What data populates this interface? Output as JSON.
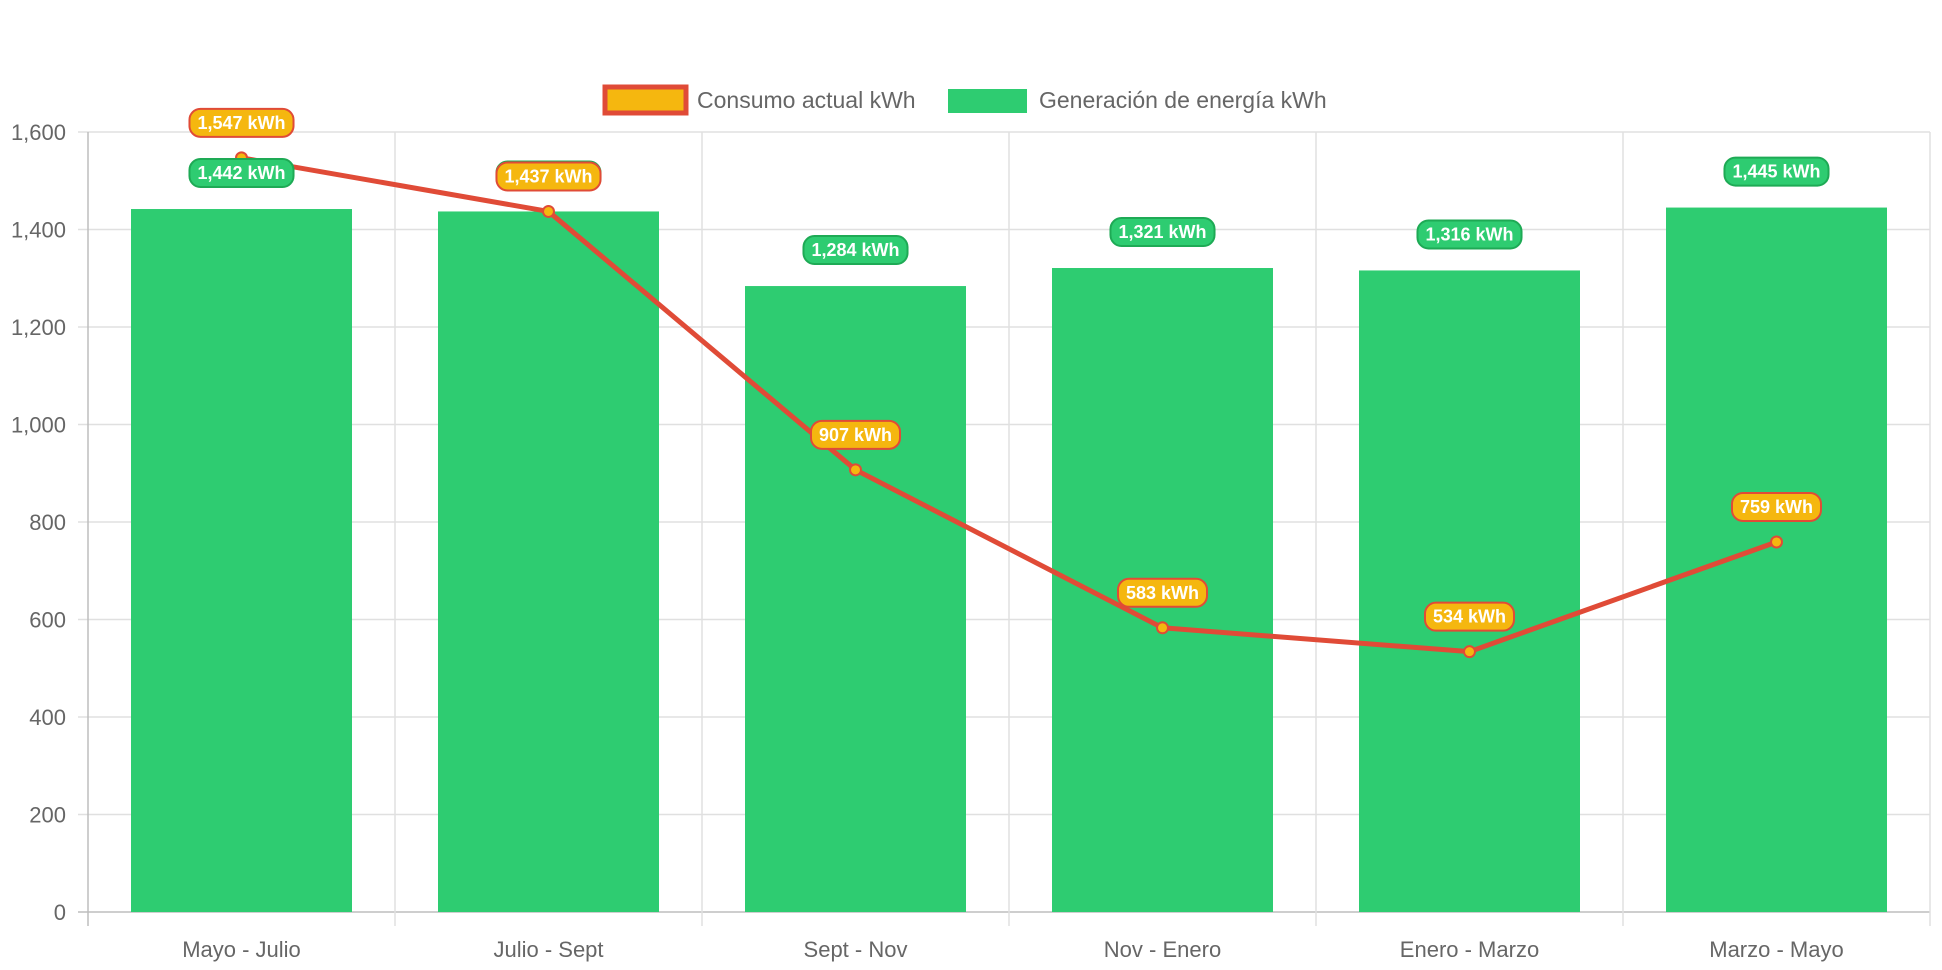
{
  "colors": {
    "line": "#e04b37",
    "line_point_fill": "#f5b70f",
    "line_label_bg": "#f5b70f",
    "line_label_border": "#e04b37",
    "bar": "#2ecc71",
    "bar_label_bg": "#2ecc71",
    "bar_label_border": "#1eaa55",
    "grid": "#e0e0e0",
    "tick_text": "#666666"
  },
  "chart_data": {
    "type": "bar",
    "categories": [
      "Mayo - Julio",
      "Julio - Sept",
      "Sept - Nov",
      "Nov - Enero",
      "Enero - Marzo",
      "Marzo - Mayo"
    ],
    "series": [
      {
        "name": "Consumo actual kWh",
        "type": "line",
        "values": [
          1547,
          1437,
          907,
          583,
          534,
          759
        ],
        "labels": [
          "1,547 kWh",
          "1,437 kWh",
          "907 kWh",
          "583 kWh",
          "534 kWh",
          "759 kWh"
        ]
      },
      {
        "name": "Generación de energía kWh",
        "type": "bar",
        "values": [
          1442,
          1437,
          1284,
          1321,
          1316,
          1445
        ],
        "labels": [
          "1,442 kWh",
          "1,437 kWh",
          "1,284 kWh",
          "1,321 kWh",
          "1,316 kWh",
          "1,445 kWh"
        ]
      }
    ],
    "title": "",
    "xlabel": "",
    "ylabel": "",
    "ylim": [
      0,
      1600
    ],
    "yticks": [
      0,
      200,
      400,
      600,
      800,
      1000,
      1200,
      1400,
      1600
    ],
    "ytick_labels": [
      "0",
      "200",
      "400",
      "600",
      "800",
      "1,000",
      "1,200",
      "1,400",
      "1,600"
    ],
    "grid": true,
    "legend": "top-center"
  }
}
